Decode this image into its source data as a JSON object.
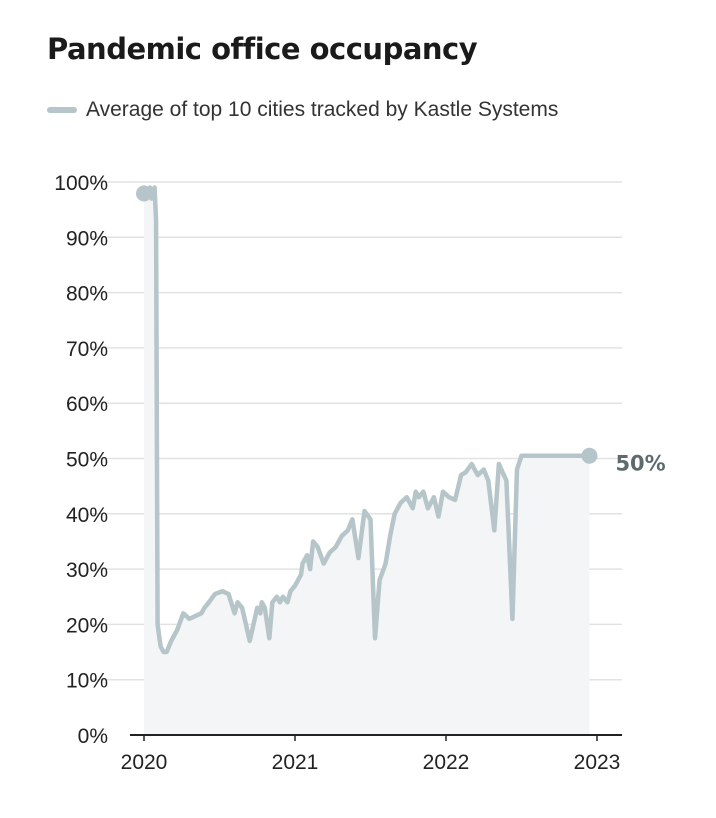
{
  "title": "Pandemic office occupancy",
  "legend": {
    "label": "Average of top 10 cities tracked by Kastle Systems"
  },
  "colors": {
    "line": "#b5c5c9",
    "area": "#f3f5f6",
    "grid": "#e2e2e2",
    "axis": "#222222",
    "end_label": "#5d6b6f"
  },
  "chart_data": {
    "type": "line",
    "title": "Pandemic office occupancy",
    "xlabel": "",
    "ylabel": "",
    "xlim": [
      2020,
      2023.0
    ],
    "ylim": [
      0,
      100
    ],
    "grid": true,
    "legend_position": "top-left",
    "x_ticks": [
      2020,
      2021,
      2022,
      2023
    ],
    "x_tick_labels": [
      "2020",
      "2021",
      "2022",
      "2023"
    ],
    "y_ticks": [
      0,
      10,
      20,
      30,
      40,
      50,
      60,
      70,
      80,
      90,
      100
    ],
    "y_tick_labels": [
      "0%",
      "10%",
      "20%",
      "30%",
      "40%",
      "50%",
      "60%",
      "70%",
      "80%",
      "90%",
      "100%"
    ],
    "end_label": "50%",
    "series": [
      {
        "name": "Average of top 10 cities tracked by Kastle Systems",
        "x": [
          2020.0,
          2020.03,
          2020.04,
          2020.05,
          2020.07,
          2020.08,
          2020.09,
          2020.11,
          2020.13,
          2020.15,
          2020.18,
          2020.22,
          2020.26,
          2020.3,
          2020.34,
          2020.38,
          2020.4,
          2020.43,
          2020.47,
          2020.52,
          2020.56,
          2020.6,
          2020.62,
          2020.65,
          2020.7,
          2020.75,
          2020.77,
          2020.78,
          2020.8,
          2020.83,
          2020.85,
          2020.88,
          2020.9,
          2020.92,
          2020.95,
          2020.97,
          2021.0,
          2021.02,
          2021.04,
          2021.05,
          2021.08,
          2021.1,
          2021.12,
          2021.15,
          2021.19,
          2021.23,
          2021.27,
          2021.31,
          2021.35,
          2021.38,
          2021.42,
          2021.46,
          2021.5,
          2021.53,
          2021.56,
          2021.6,
          2021.63,
          2021.66,
          2021.7,
          2021.74,
          2021.78,
          2021.8,
          2021.82,
          2021.85,
          2021.88,
          2021.92,
          2021.95,
          2021.98,
          2022.02,
          2022.06,
          2022.1,
          2022.13,
          2022.17,
          2022.21,
          2022.25,
          2022.28,
          2022.32,
          2022.35,
          2022.4,
          2022.44,
          2022.47,
          2022.5,
          2022.55,
          2022.6,
          2022.64,
          2022.68,
          2022.72,
          2022.75,
          2022.77,
          2022.79,
          2022.82,
          2022.84,
          2022.86,
          2022.88,
          2022.9,
          2022.92,
          2022.95
        ],
        "y": [
          99,
          98,
          99,
          97,
          99,
          93,
          20,
          16,
          15,
          15,
          17,
          19,
          22,
          21,
          21.5,
          22,
          23,
          24,
          25.5,
          26,
          25.5,
          22,
          24,
          23,
          17,
          23,
          22,
          24,
          23,
          17.5,
          24,
          25,
          24,
          25,
          24,
          26,
          27,
          28,
          29,
          31,
          32.5,
          30,
          35,
          34,
          31,
          33,
          34,
          36,
          37,
          39,
          32,
          40.5,
          39,
          17.5,
          28,
          31,
          36,
          40,
          42,
          43,
          41,
          44,
          43,
          44,
          41,
          43,
          39.5,
          44,
          43,
          42.5,
          47,
          47.5,
          49,
          47,
          48,
          46,
          37,
          49,
          46,
          21,
          48,
          50.5,
          50.5,
          50.5,
          50.5,
          50.5,
          50.5,
          50.5,
          50.5,
          50.5,
          50.5,
          50.5,
          50.5,
          50.5,
          50.5,
          50.5,
          50.5
        ]
      }
    ]
  }
}
